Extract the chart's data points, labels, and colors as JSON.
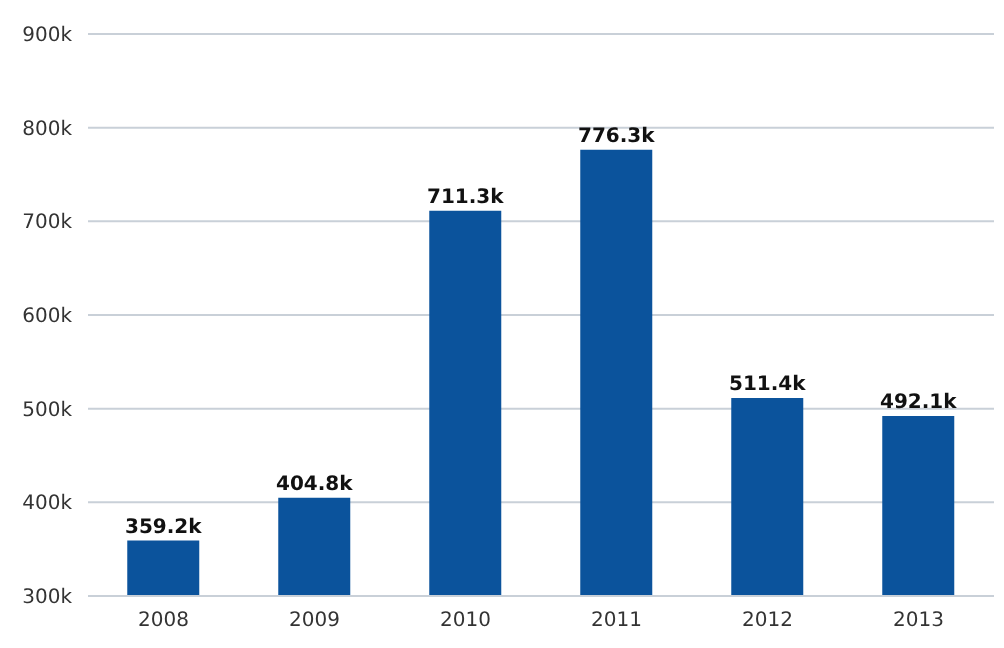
{
  "chart_data": {
    "type": "bar",
    "categories": [
      "2008",
      "2009",
      "2010",
      "2011",
      "2012",
      "2013"
    ],
    "series": [
      {
        "color": "#0b539c",
        "values": [
          359200,
          404800,
          711300,
          776300,
          511400,
          492100
        ],
        "value_labels": [
          "359.2k",
          "404.8k",
          "711.3k",
          "776.3k",
          "511.4k",
          "492.1k"
        ]
      }
    ],
    "ylim": [
      300000,
      900000
    ],
    "yticks": [
      {
        "value": 300000,
        "label": "300k"
      },
      {
        "value": 400000,
        "label": "400k"
      },
      {
        "value": 500000,
        "label": "500k"
      },
      {
        "value": 600000,
        "label": "600k"
      },
      {
        "value": 700000,
        "label": "700k"
      },
      {
        "value": 800000,
        "label": "800k"
      },
      {
        "value": 900000,
        "label": "900k"
      }
    ],
    "grid": "y",
    "legend": false
  }
}
